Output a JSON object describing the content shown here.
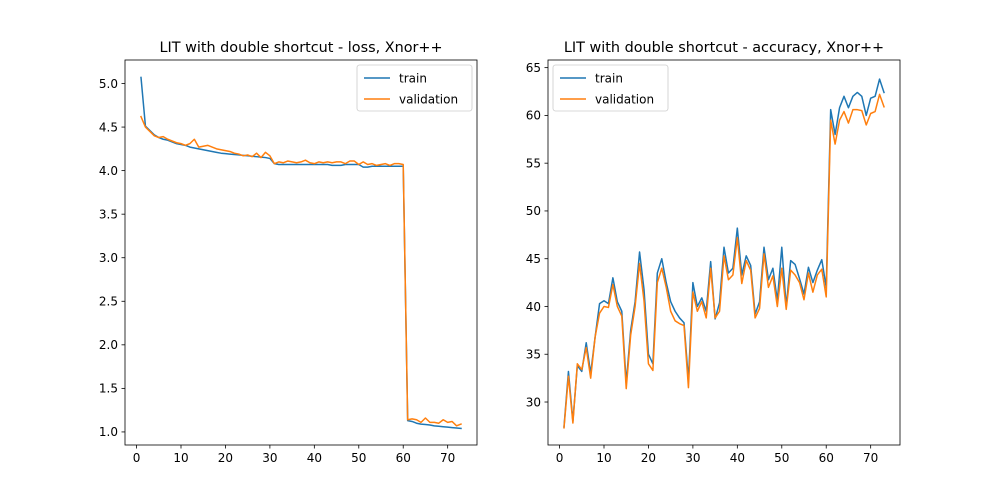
{
  "chart_data": [
    {
      "type": "line",
      "title": "LIT with double shortcut - loss, Xnor++",
      "xlabel": "",
      "ylabel": "",
      "xlim": [
        -2.6,
        76.6
      ],
      "ylim": [
        0.85,
        5.27
      ],
      "x_ticks": [
        0,
        10,
        20,
        30,
        40,
        50,
        60,
        70
      ],
      "y_ticks": [
        1.0,
        1.5,
        2.0,
        2.5,
        3.0,
        3.5,
        4.0,
        4.5,
        5.0
      ],
      "x_tick_labels": [
        "0",
        "10",
        "20",
        "30",
        "40",
        "50",
        "60",
        "70"
      ],
      "y_tick_labels": [
        "1.0",
        "1.5",
        "2.0",
        "2.5",
        "3.0",
        "3.5",
        "4.0",
        "4.5",
        "5.0"
      ],
      "legend": "upper right",
      "grid": false,
      "x": [
        1,
        2,
        3,
        4,
        5,
        6,
        7,
        8,
        9,
        10,
        11,
        12,
        13,
        14,
        15,
        16,
        17,
        18,
        19,
        20,
        21,
        22,
        23,
        24,
        25,
        26,
        27,
        28,
        29,
        30,
        31,
        32,
        33,
        34,
        35,
        36,
        37,
        38,
        39,
        40,
        41,
        42,
        43,
        44,
        45,
        46,
        47,
        48,
        49,
        50,
        51,
        52,
        53,
        54,
        55,
        56,
        57,
        58,
        59,
        60,
        61,
        62,
        63,
        64,
        65,
        66,
        67,
        68,
        69,
        70,
        71,
        72,
        73
      ],
      "series": [
        {
          "name": "train",
          "color": "#1f77b4",
          "values": [
            5.07,
            4.51,
            4.46,
            4.41,
            4.38,
            4.36,
            4.35,
            4.33,
            4.31,
            4.3,
            4.29,
            4.27,
            4.26,
            4.25,
            4.24,
            4.23,
            4.22,
            4.21,
            4.2,
            4.195,
            4.19,
            4.185,
            4.18,
            4.175,
            4.17,
            4.165,
            4.16,
            4.155,
            4.15,
            4.14,
            4.08,
            4.07,
            4.07,
            4.07,
            4.07,
            4.07,
            4.07,
            4.07,
            4.07,
            4.07,
            4.07,
            4.07,
            4.07,
            4.06,
            4.06,
            4.06,
            4.07,
            4.07,
            4.07,
            4.07,
            4.04,
            4.04,
            4.05,
            4.05,
            4.05,
            4.05,
            4.05,
            4.05,
            4.05,
            4.05,
            1.13,
            1.12,
            1.1,
            1.09,
            1.085,
            1.08,
            1.07,
            1.065,
            1.06,
            1.055,
            1.05,
            1.045,
            1.04
          ]
        },
        {
          "name": "validation",
          "color": "#ff7f0e",
          "values": [
            4.62,
            4.5,
            4.45,
            4.4,
            4.38,
            4.39,
            4.36,
            4.34,
            4.32,
            4.31,
            4.29,
            4.31,
            4.36,
            4.27,
            4.28,
            4.29,
            4.27,
            4.25,
            4.24,
            4.23,
            4.22,
            4.2,
            4.19,
            4.17,
            4.18,
            4.16,
            4.2,
            4.15,
            4.21,
            4.17,
            4.08,
            4.1,
            4.09,
            4.11,
            4.1,
            4.09,
            4.1,
            4.12,
            4.09,
            4.08,
            4.1,
            4.09,
            4.1,
            4.09,
            4.1,
            4.1,
            4.08,
            4.11,
            4.11,
            4.07,
            4.1,
            4.07,
            4.08,
            4.06,
            4.07,
            4.08,
            4.06,
            4.08,
            4.08,
            4.07,
            1.14,
            1.15,
            1.14,
            1.11,
            1.16,
            1.11,
            1.11,
            1.1,
            1.14,
            1.11,
            1.12,
            1.07,
            1.09
          ]
        }
      ]
    },
    {
      "type": "line",
      "title": "LIT with double shortcut - accuracy, Xnor++",
      "xlabel": "",
      "ylabel": "",
      "xlim": [
        -2.6,
        76.6
      ],
      "ylim": [
        25.5,
        65.8
      ],
      "x_ticks": [
        0,
        10,
        20,
        30,
        40,
        50,
        60,
        70
      ],
      "y_ticks": [
        30,
        35,
        40,
        45,
        50,
        55,
        60,
        65
      ],
      "x_tick_labels": [
        "0",
        "10",
        "20",
        "30",
        "40",
        "50",
        "60",
        "70"
      ],
      "y_tick_labels": [
        "30",
        "35",
        "40",
        "45",
        "50",
        "55",
        "60",
        "65"
      ],
      "legend": "upper left",
      "grid": false,
      "x": [
        1,
        2,
        3,
        4,
        5,
        6,
        7,
        8,
        9,
        10,
        11,
        12,
        13,
        14,
        15,
        16,
        17,
        18,
        19,
        20,
        21,
        22,
        23,
        24,
        25,
        26,
        27,
        28,
        29,
        30,
        31,
        32,
        33,
        34,
        35,
        36,
        37,
        38,
        39,
        40,
        41,
        42,
        43,
        44,
        45,
        46,
        47,
        48,
        49,
        50,
        51,
        52,
        53,
        54,
        55,
        56,
        57,
        58,
        59,
        60,
        61,
        62,
        63,
        64,
        65,
        66,
        67,
        68,
        69,
        70,
        71,
        72,
        73
      ],
      "series": [
        {
          "name": "train",
          "color": "#1f77b4",
          "values": [
            27.4,
            33.2,
            28.0,
            33.8,
            33.2,
            36.2,
            33.0,
            36.8,
            40.3,
            40.6,
            40.3,
            43.0,
            40.5,
            39.5,
            32.0,
            37.5,
            40.5,
            45.7,
            41.8,
            35.0,
            34.0,
            43.5,
            45.0,
            42.5,
            40.5,
            39.5,
            38.8,
            38.3,
            32.3,
            42.5,
            40.0,
            40.9,
            39.5,
            44.7,
            38.7,
            40.4,
            46.2,
            43.5,
            44.0,
            48.2,
            43.3,
            45.3,
            44.3,
            39.2,
            40.5,
            46.2,
            42.8,
            44.0,
            40.6,
            46.2,
            40.0,
            44.8,
            44.4,
            42.9,
            41.3,
            44.1,
            42.5,
            43.8,
            44.9,
            42.0,
            60.6,
            58.0,
            60.8,
            62.0,
            60.8,
            62.0,
            62.4,
            62.0,
            60.0,
            61.8,
            62.0,
            63.8,
            62.4
          ]
        },
        {
          "name": "validation",
          "color": "#ff7f0e",
          "values": [
            27.3,
            32.7,
            27.8,
            34.0,
            33.4,
            35.7,
            32.5,
            36.8,
            39.3,
            40.0,
            39.9,
            42.3,
            40.0,
            39.0,
            31.4,
            37.0,
            40.0,
            44.5,
            40.6,
            34.0,
            33.3,
            42.5,
            44.0,
            42.0,
            39.5,
            38.5,
            38.2,
            38.0,
            31.5,
            41.5,
            39.5,
            40.5,
            38.8,
            44.0,
            38.8,
            39.5,
            45.3,
            42.8,
            43.3,
            47.2,
            42.4,
            44.8,
            43.8,
            38.8,
            39.8,
            45.5,
            42.0,
            43.2,
            40.0,
            44.0,
            39.7,
            43.8,
            43.3,
            42.5,
            40.7,
            43.5,
            41.5,
            43.3,
            43.9,
            41.0,
            59.5,
            57.0,
            59.5,
            60.4,
            59.2,
            60.6,
            60.6,
            60.5,
            59.0,
            60.2,
            60.4,
            62.2,
            60.9
          ]
        }
      ]
    }
  ]
}
